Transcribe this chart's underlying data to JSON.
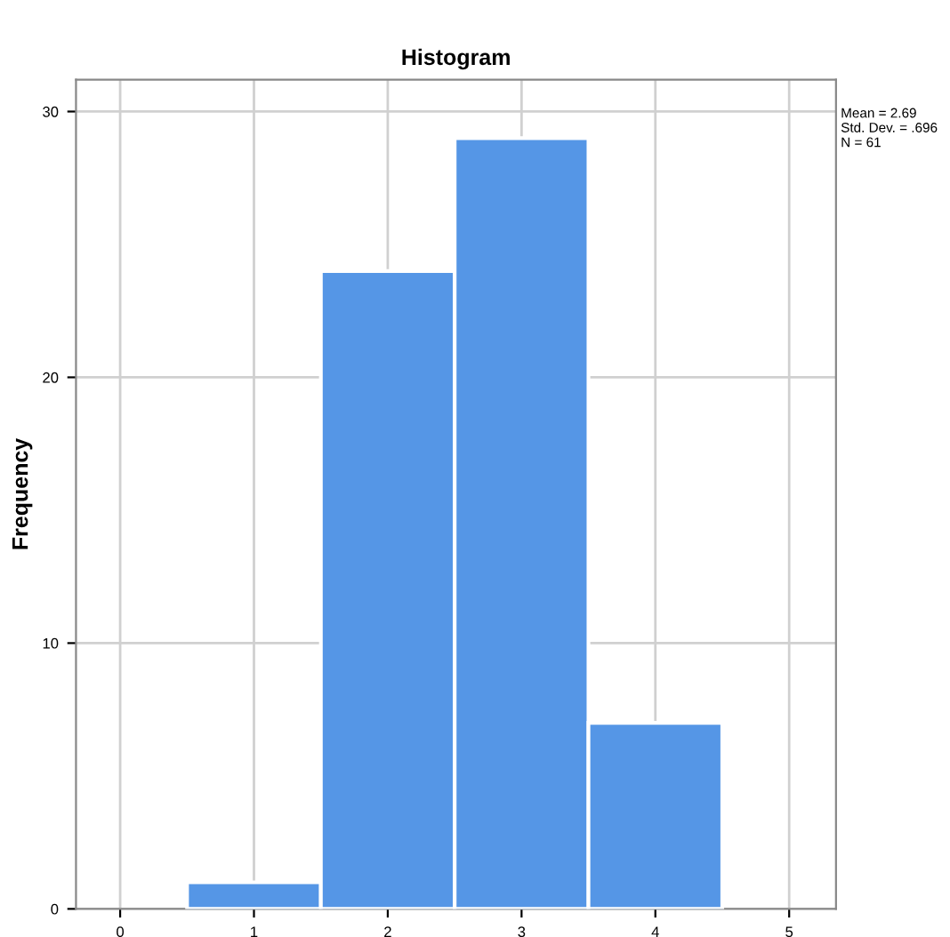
{
  "chart_data": {
    "type": "histogram",
    "title": "Histogram",
    "ylabel": "Frequency",
    "bins": [
      0.5,
      1.5,
      2.5,
      3.5,
      4.5
    ],
    "values": [
      1,
      24,
      29,
      7
    ],
    "color": "#5596e6",
    "xlim": [
      -0.33,
      5.35
    ],
    "xticks": [
      0,
      1,
      2,
      3,
      4,
      5
    ],
    "ylim": [
      0,
      31.2
    ],
    "yticks": [
      0,
      10,
      20,
      30
    ],
    "grid": true,
    "annotations": [
      "Mean = 2.69",
      "Std. Dev. = .696",
      "N = 61"
    ]
  }
}
